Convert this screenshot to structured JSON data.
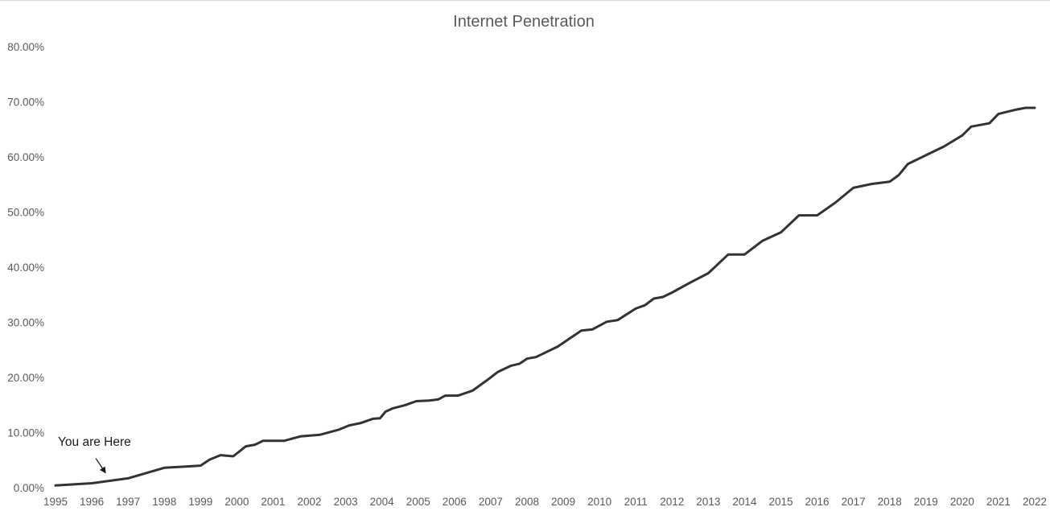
{
  "chart_data": {
    "type": "line",
    "title": "Internet Penetration",
    "xlabel": "",
    "ylabel": "",
    "x_ticks": [
      "1995",
      "1996",
      "1997",
      "1998",
      "1999",
      "2000",
      "2001",
      "2002",
      "2003",
      "2004",
      "2005",
      "2006",
      "2007",
      "2008",
      "2009",
      "2010",
      "2011",
      "2012",
      "2013",
      "2014",
      "2015",
      "2016",
      "2017",
      "2018",
      "2019",
      "2020",
      "2021",
      "2022"
    ],
    "y_ticks": [
      "0.00%",
      "10.00%",
      "20.00%",
      "30.00%",
      "40.00%",
      "50.00%",
      "60.00%",
      "70.00%",
      "80.00%"
    ],
    "xlim": [
      1995,
      2022
    ],
    "ylim": [
      0,
      80
    ],
    "y_unit": "%",
    "grid": false,
    "legend": "none",
    "line_color": "#333333",
    "series": [
      {
        "x": [
          1995.0,
          1996.0,
          1997.0,
          1998.0,
          1998.5,
          1999.0,
          1999.25,
          1999.55,
          1999.9,
          2000.25,
          2000.5,
          2000.72,
          2001.0,
          2001.3,
          2001.75,
          2002.3,
          2002.8,
          2003.1,
          2003.4,
          2003.75,
          2003.95,
          2004.1,
          2004.3,
          2004.65,
          2004.95,
          2005.3,
          2005.55,
          2005.75,
          2006.1,
          2006.5,
          2006.9,
          2007.2,
          2007.55,
          2007.8,
          2008.0,
          2008.25,
          2008.85,
          2009.5,
          2009.8,
          2010.2,
          2010.5,
          2011.0,
          2011.25,
          2011.5,
          2011.75,
          2012.0,
          2012.5,
          2013.0,
          2013.55,
          2014.0,
          2014.5,
          2015.0,
          2015.5,
          2016.0,
          2016.5,
          2017.0,
          2017.5,
          2018.0,
          2018.25,
          2018.5,
          2019.0,
          2019.5,
          2020.0,
          2020.25,
          2020.75,
          2021.0,
          2021.5,
          2021.75,
          2022.0
        ],
        "y": [
          0.4,
          0.8,
          1.7,
          3.6,
          3.8,
          4.0,
          5.1,
          5.9,
          5.7,
          7.5,
          7.8,
          8.5,
          8.5,
          8.5,
          9.3,
          9.6,
          10.5,
          11.3,
          11.7,
          12.5,
          12.6,
          13.8,
          14.4,
          15.0,
          15.7,
          15.8,
          16.0,
          16.7,
          16.7,
          17.6,
          19.5,
          21.0,
          22.1,
          22.5,
          23.4,
          23.7,
          25.6,
          28.5,
          28.7,
          30.1,
          30.4,
          32.5,
          33.1,
          34.3,
          34.6,
          35.4,
          37.2,
          38.9,
          42.3,
          42.3,
          44.8,
          46.3,
          49.4,
          49.4,
          51.7,
          54.4,
          55.1,
          55.5,
          56.7,
          58.7,
          60.3,
          61.9,
          63.9,
          65.5,
          66.1,
          67.8,
          68.6,
          68.9,
          68.9
        ]
      }
    ],
    "annotations": [
      {
        "text": "You are Here",
        "arrow_to": {
          "x": 1996.4,
          "y": 2.4
        }
      }
    ]
  }
}
